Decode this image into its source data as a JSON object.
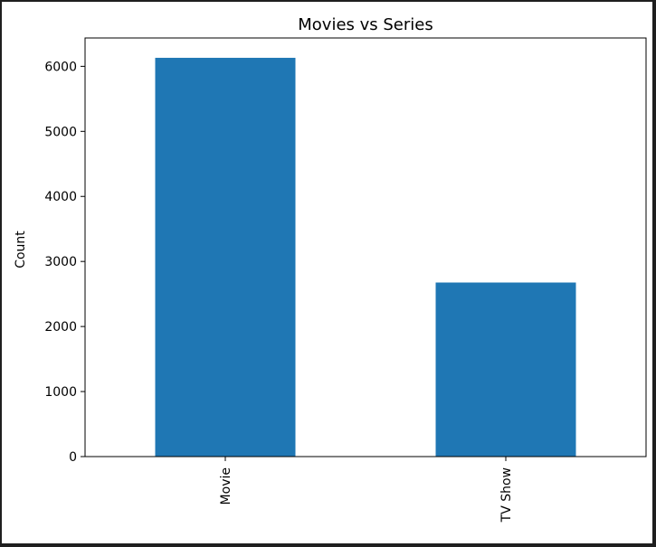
{
  "chart_data": {
    "type": "bar",
    "title": "Movies vs Series",
    "xlabel": "",
    "ylabel": "Count",
    "categories": [
      "Movie",
      "TV Show"
    ],
    "values": [
      6131,
      2676
    ],
    "ylim": [
      0,
      6436
    ],
    "yticks": [
      0,
      1000,
      2000,
      3000,
      4000,
      5000,
      6000
    ],
    "ytick_labels": [
      "0",
      "1000",
      "2000",
      "3000",
      "4000",
      "5000",
      "6000"
    ],
    "x_tick_rotation": "vertical",
    "grid": false,
    "legend": "none",
    "bar_color": "#1f77b4"
  }
}
